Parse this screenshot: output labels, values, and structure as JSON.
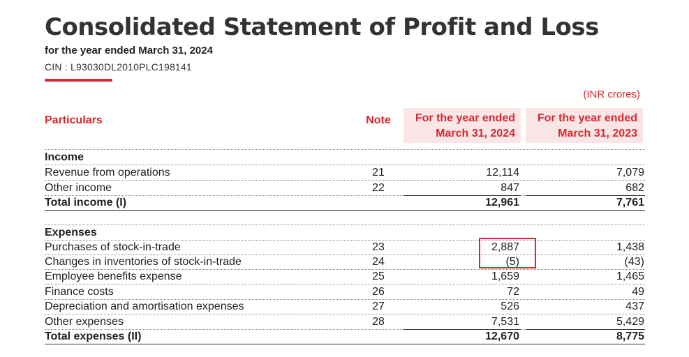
{
  "header": {
    "title": "Consolidated Statement of Profit and Loss",
    "subtitle": "for the year ended March 31, 2024",
    "cin": "CIN : L93030DL2010PLC198141",
    "units": "(INR crores)"
  },
  "columns": {
    "particulars": "Particulars",
    "note": "Note",
    "fy2024_line1": "For the year ended",
    "fy2024_line2": "March 31, 2024",
    "fy2023_line1": "For the year ended",
    "fy2023_line2": "March 31, 2023"
  },
  "income": {
    "heading": "Income",
    "rows": [
      {
        "label": "Revenue from operations",
        "note": "21",
        "fy2024": "12,114",
        "fy2023": "7,079"
      },
      {
        "label": "Other income",
        "note": "22",
        "fy2024": "847",
        "fy2023": "682"
      }
    ],
    "total": {
      "label": "Total income (I)",
      "fy2024": "12,961",
      "fy2023": "7,761"
    }
  },
  "expenses": {
    "heading": "Expenses",
    "rows": [
      {
        "label": "Purchases of stock-in-trade",
        "note": "23",
        "fy2024": "2,887",
        "fy2023": "1,438"
      },
      {
        "label": "Changes in inventories of stock-in-trade",
        "note": "24",
        "fy2024": "(5)",
        "fy2023": "(43)"
      },
      {
        "label": "Employee benefits expense",
        "note": "25",
        "fy2024": "1,659",
        "fy2023": "1,465"
      },
      {
        "label": "Finance costs",
        "note": "26",
        "fy2024": "72",
        "fy2023": "49"
      },
      {
        "label": "Depreciation and amortisation expenses",
        "note": "27",
        "fy2024": "526",
        "fy2023": "437"
      },
      {
        "label": "Other expenses",
        "note": "28",
        "fy2024": "7,531",
        "fy2023": "5,429"
      }
    ],
    "total": {
      "label": "Total expenses (II)",
      "fy2024": "12,670",
      "fy2023": "8,775"
    }
  },
  "colors": {
    "accent": "#d7282f",
    "header_bg": "#fbe6e7"
  }
}
